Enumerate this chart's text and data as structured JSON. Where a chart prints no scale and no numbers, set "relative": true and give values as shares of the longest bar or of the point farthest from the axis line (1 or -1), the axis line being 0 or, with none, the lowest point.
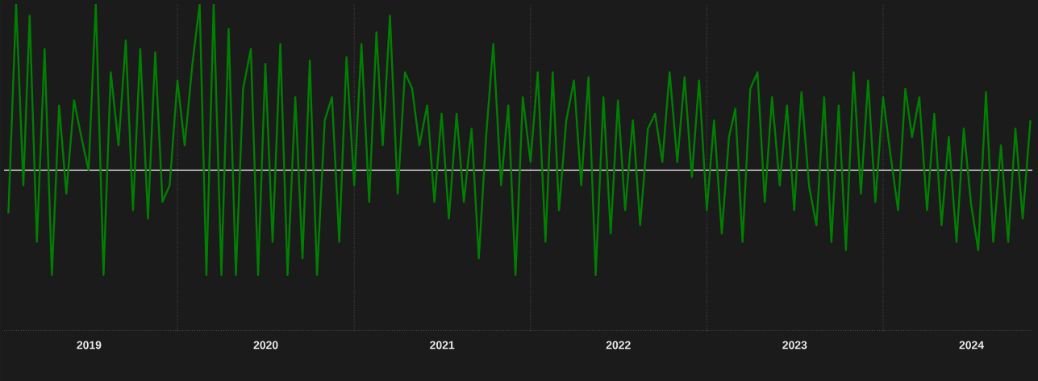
{
  "chart_data": {
    "type": "line",
    "relative": true,
    "grid": "x",
    "xlim": [
      "2019-01-07",
      "2024-11-05"
    ],
    "xticks": [
      {
        "value": "2019-07-02",
        "label": "2019"
      },
      {
        "value": "2020-01-01",
        "label": null
      },
      {
        "value": "2020-07-02",
        "label": "2020"
      },
      {
        "value": "2021-01-01",
        "label": null
      },
      {
        "value": "2021-07-02",
        "label": "2021"
      },
      {
        "value": "2022-01-01",
        "label": null
      },
      {
        "value": "2022-07-02",
        "label": "2022"
      },
      {
        "value": "2023-01-01",
        "label": null
      },
      {
        "value": "2023-07-02",
        "label": "2023"
      },
      {
        "value": "2024-01-01",
        "label": null
      },
      {
        "value": "2024-07-02",
        "label": "2024"
      }
    ],
    "ref_lines": [
      {
        "axis": "y",
        "value": 0,
        "color": "#d8d8d8"
      }
    ],
    "series": [
      {
        "color": "#008000",
        "x": [
          "2019-01-16",
          "2019-02-01",
          "2019-02-16",
          "2019-03-01",
          "2019-03-16",
          "2019-04-01",
          "2019-04-16",
          "2019-05-01",
          "2019-05-16",
          "2019-06-01",
          "2019-06-16",
          "2019-07-01",
          "2019-07-16",
          "2019-08-01",
          "2019-08-16",
          "2019-09-01",
          "2019-09-16",
          "2019-10-01",
          "2019-10-16",
          "2019-11-01",
          "2019-11-16",
          "2019-12-01",
          "2019-12-16",
          "2020-01-01",
          "2020-01-16",
          "2020-02-01",
          "2020-02-16",
          "2020-03-01",
          "2020-03-16",
          "2020-04-01",
          "2020-04-16",
          "2020-05-01",
          "2020-05-16",
          "2020-06-01",
          "2020-06-16",
          "2020-07-01",
          "2020-07-16",
          "2020-08-01",
          "2020-08-16",
          "2020-09-01",
          "2020-09-16",
          "2020-10-01",
          "2020-10-16",
          "2020-11-01",
          "2020-11-16",
          "2020-12-01",
          "2020-12-16",
          "2021-01-01",
          "2021-01-16",
          "2021-02-01",
          "2021-02-16",
          "2021-03-01",
          "2021-03-16",
          "2021-04-01",
          "2021-04-16",
          "2021-05-01",
          "2021-05-16",
          "2021-06-01",
          "2021-06-16",
          "2021-07-01",
          "2021-07-16",
          "2021-08-01",
          "2021-08-16",
          "2021-09-01",
          "2021-09-16",
          "2021-10-01",
          "2021-10-16",
          "2021-11-01",
          "2021-11-16",
          "2021-12-01",
          "2021-12-16",
          "2022-01-01",
          "2022-01-16",
          "2022-02-01",
          "2022-02-16",
          "2022-03-01",
          "2022-03-16",
          "2022-04-01",
          "2022-04-16",
          "2022-05-01",
          "2022-05-16",
          "2022-06-01",
          "2022-06-16",
          "2022-07-01",
          "2022-07-16",
          "2022-08-01",
          "2022-08-16",
          "2022-09-01",
          "2022-09-16",
          "2022-10-01",
          "2022-10-16",
          "2022-11-01",
          "2022-11-16",
          "2022-12-01",
          "2022-12-16",
          "2023-01-01",
          "2023-01-16",
          "2023-02-01",
          "2023-02-16",
          "2023-03-01",
          "2023-03-16",
          "2023-04-01",
          "2023-04-16",
          "2023-05-01",
          "2023-05-16",
          "2023-06-01",
          "2023-06-16",
          "2023-07-01",
          "2023-07-16",
          "2023-08-01",
          "2023-08-16",
          "2023-09-01",
          "2023-09-16",
          "2023-10-01",
          "2023-10-16",
          "2023-11-01",
          "2023-11-16",
          "2023-12-01",
          "2023-12-16",
          "2024-01-01",
          "2024-01-16",
          "2024-02-01",
          "2024-02-16",
          "2024-03-01",
          "2024-03-16",
          "2024-04-01",
          "2024-04-16",
          "2024-05-01",
          "2024-05-16",
          "2024-06-01",
          "2024-06-16",
          "2024-07-01",
          "2024-07-16",
          "2024-08-01",
          "2024-08-16",
          "2024-09-01",
          "2024-09-16",
          "2024-10-01",
          "2024-10-16",
          "2024-11-01"
        ],
        "values": [
          -0.26,
          1.0,
          -0.09,
          0.93,
          -0.43,
          0.73,
          -0.63,
          0.39,
          -0.14,
          0.42,
          0.2,
          0.0,
          1.0,
          -0.63,
          0.59,
          0.15,
          0.78,
          -0.24,
          0.73,
          -0.29,
          0.71,
          -0.19,
          -0.09,
          0.54,
          0.15,
          0.64,
          1.0,
          -0.63,
          1.0,
          -0.63,
          0.85,
          -0.63,
          0.49,
          0.73,
          -0.63,
          0.64,
          -0.43,
          0.76,
          -0.63,
          0.44,
          -0.53,
          0.66,
          -0.63,
          0.3,
          0.44,
          -0.43,
          0.68,
          -0.09,
          0.76,
          -0.19,
          0.83,
          0.15,
          0.93,
          -0.14,
          0.59,
          0.49,
          0.15,
          0.39,
          -0.19,
          0.34,
          -0.29,
          0.34,
          -0.19,
          0.25,
          -0.53,
          0.2,
          0.76,
          -0.09,
          0.39,
          -0.63,
          0.44,
          0.05,
          0.59,
          -0.43,
          0.59,
          -0.24,
          0.3,
          0.54,
          -0.09,
          0.56,
          -0.63,
          0.44,
          -0.38,
          0.42,
          -0.24,
          0.3,
          -0.33,
          0.25,
          0.34,
          0.05,
          0.59,
          0.05,
          0.56,
          -0.04,
          0.54,
          -0.24,
          0.3,
          -0.38,
          0.2,
          0.37,
          -0.43,
          0.49,
          0.59,
          -0.19,
          0.44,
          -0.09,
          0.39,
          -0.24,
          0.47,
          -0.1,
          -0.33,
          0.44,
          -0.43,
          0.39,
          -0.48,
          0.59,
          -0.14,
          0.54,
          -0.19,
          0.44,
          0.1,
          -0.24,
          0.49,
          0.2,
          0.44,
          -0.24,
          0.34,
          -0.33,
          0.2,
          -0.43,
          0.25,
          -0.2,
          -0.48,
          0.47,
          -0.43,
          0.15,
          -0.43,
          0.25,
          -0.29,
          0.3
        ]
      }
    ]
  }
}
